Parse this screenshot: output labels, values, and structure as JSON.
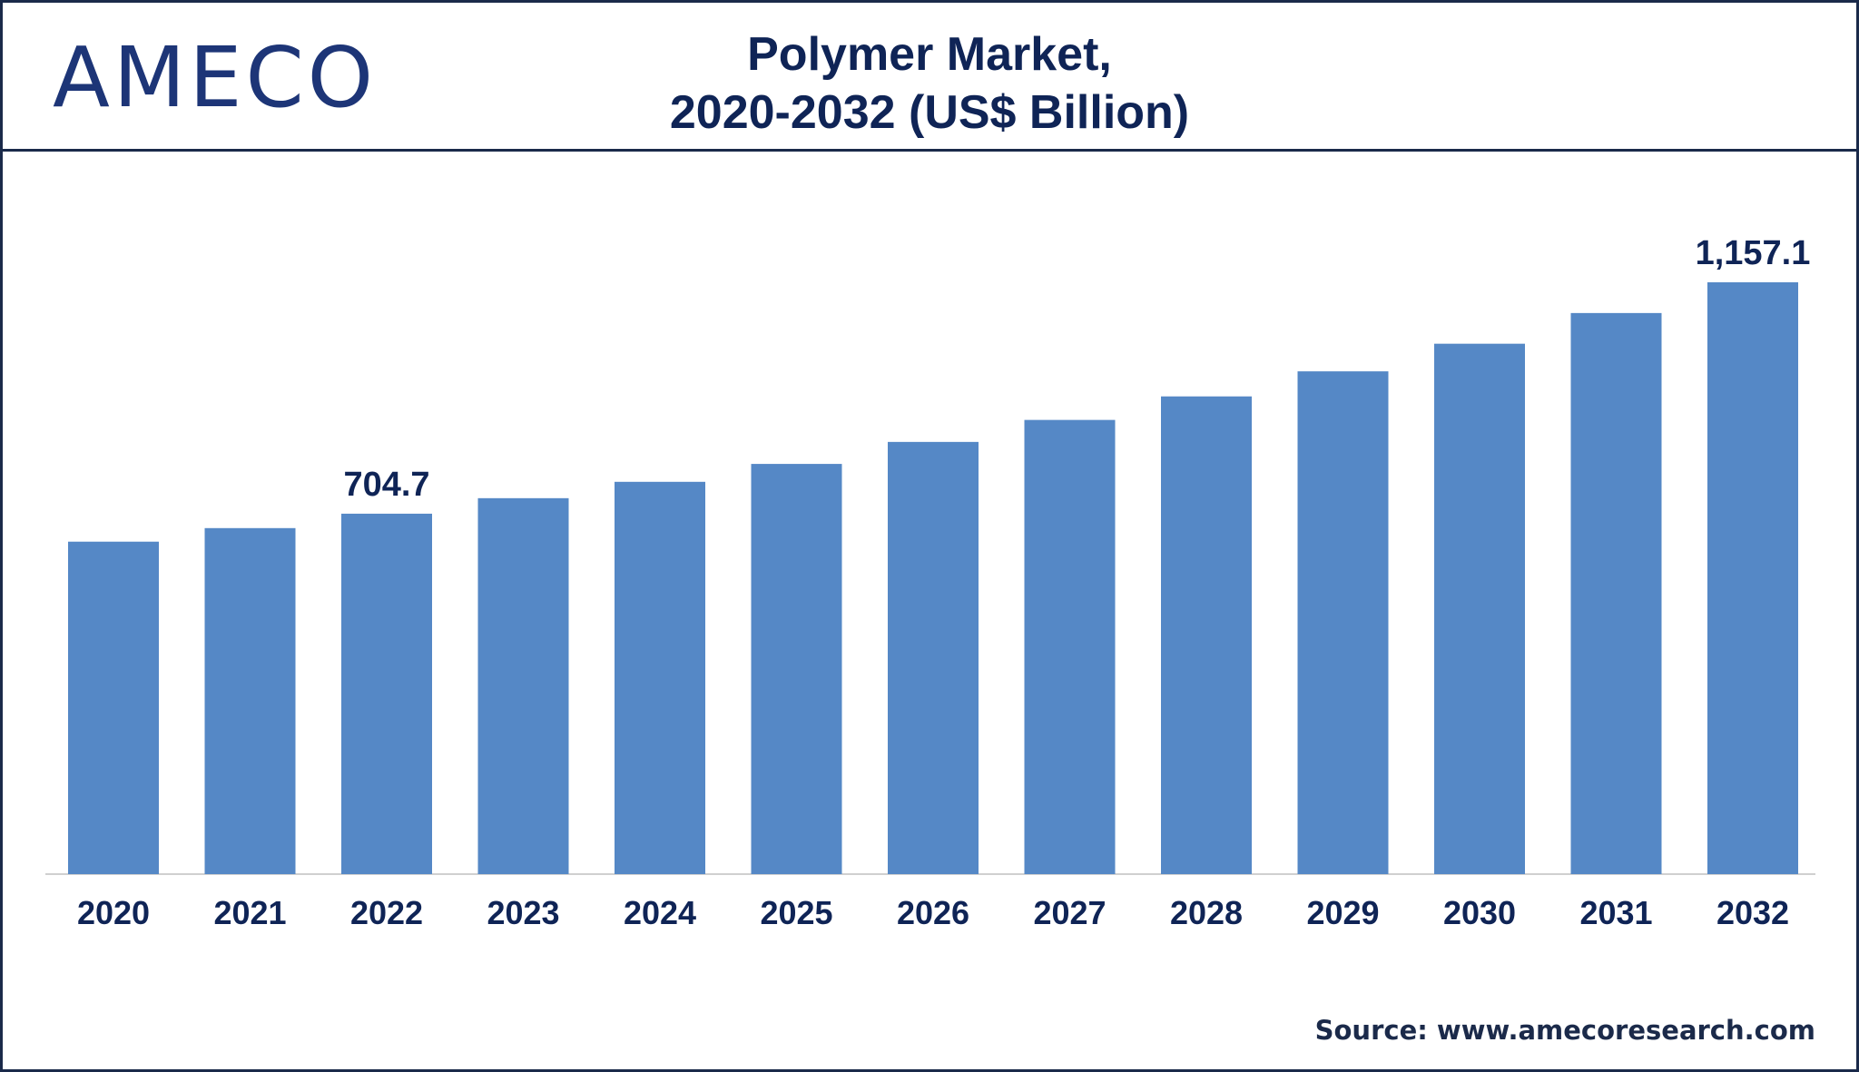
{
  "logo": {
    "text": "AMECO"
  },
  "header": {
    "title_line1": "Polymer Market,",
    "title_line2": "2020-2032 (US$ Billion)"
  },
  "footer": {
    "source": "Source: www.amecoresearch.com"
  },
  "colors": {
    "bar": "#5588c6",
    "text": "#0f2456",
    "frame": "#1a2a4a"
  },
  "chart_data": {
    "type": "bar",
    "title": "Polymer Market, 2020-2032 (US$ Billion)",
    "xlabel": "",
    "ylabel": "",
    "categories": [
      "2020",
      "2021",
      "2022",
      "2023",
      "2024",
      "2025",
      "2026",
      "2027",
      "2028",
      "2029",
      "2030",
      "2031",
      "2032"
    ],
    "values": [
      650,
      676.5,
      704.7,
      735,
      767,
      802,
      845,
      888,
      934,
      983,
      1037,
      1097,
      1157.1
    ],
    "data_labels": [
      {
        "category": "2022",
        "text": "704.7"
      },
      {
        "category": "2032",
        "text": "1,157.1"
      }
    ],
    "ylim": [
      0,
      1300
    ],
    "grid": false,
    "legend": "none"
  }
}
